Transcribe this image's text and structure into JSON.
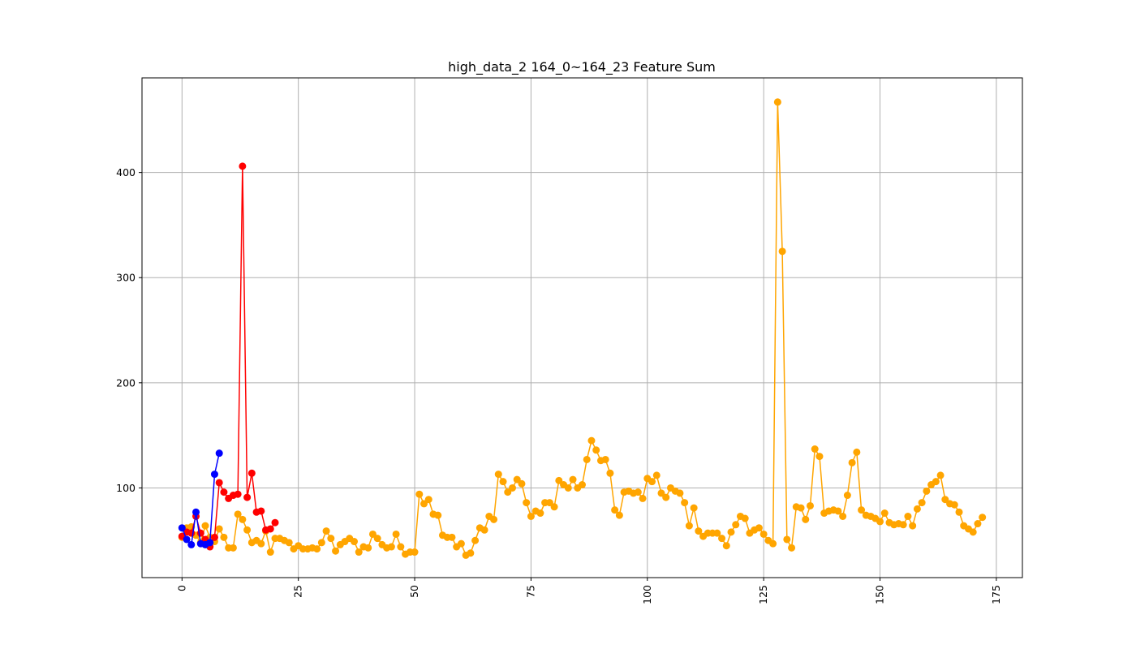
{
  "chart_data": {
    "type": "line",
    "title": "high_data_2 164_0~164_23 Feature Sum",
    "xlabel": "",
    "ylabel": "",
    "xlim": [
      -8.6,
      180.6
    ],
    "ylim": [
      14.7,
      490
    ],
    "grid": true,
    "legend": "none",
    "x_ticks": [
      0,
      25,
      50,
      75,
      100,
      125,
      150,
      175
    ],
    "x_tick_labels": [
      "0",
      "25",
      "50",
      "75",
      "100",
      "125",
      "150",
      "175"
    ],
    "x_tick_rotation": -90,
    "y_ticks": [
      100,
      200,
      300,
      400
    ],
    "y_tick_labels": [
      "100",
      "200",
      "300",
      "400"
    ],
    "series": [
      {
        "color": "#ffa500",
        "marker": "circle",
        "x_start": 0,
        "values": [
          53,
          62,
          63,
          55,
          48,
          64,
          53,
          49,
          61,
          53,
          43,
          43,
          75,
          70,
          60,
          48,
          50,
          47,
          59,
          39,
          52,
          52,
          50,
          48,
          42,
          45,
          42,
          42,
          43,
          42,
          48,
          59,
          52,
          40,
          46,
          49,
          52,
          49,
          39,
          44,
          43,
          56,
          52,
          46,
          43,
          44,
          56,
          44,
          37,
          39,
          39,
          94,
          85,
          89,
          75,
          74,
          55,
          53,
          53,
          44,
          47,
          36,
          38,
          50,
          62,
          60,
          73,
          70,
          113,
          106,
          96,
          100,
          108,
          104,
          86,
          73,
          78,
          76,
          86,
          86,
          82,
          107,
          103,
          100,
          108,
          100,
          103,
          127,
          145,
          136,
          126,
          127,
          114,
          79,
          74,
          96,
          97,
          95,
          96,
          90,
          109,
          106,
          112,
          95,
          91,
          100,
          97,
          95,
          86,
          64,
          81,
          59,
          54,
          57,
          57,
          57,
          52,
          45,
          58,
          65,
          73,
          71,
          57,
          60,
          62,
          56,
          50,
          47,
          467,
          325,
          51,
          43,
          82,
          81,
          70,
          83,
          137,
          130,
          76,
          78,
          79,
          78,
          73,
          93,
          124,
          134,
          79,
          74,
          73,
          71,
          68,
          76,
          67,
          65,
          66,
          65,
          73,
          64,
          80,
          86,
          97,
          103,
          106,
          112,
          89,
          85,
          84,
          77,
          64,
          61,
          58,
          66,
          72
        ]
      },
      {
        "color": "#ff0000",
        "marker": "circle",
        "x_start": 0,
        "values": [
          54,
          58,
          57,
          73,
          57,
          51,
          44,
          53,
          105,
          96,
          90,
          93,
          94,
          406,
          91,
          114,
          77,
          78,
          60,
          61,
          67
        ]
      },
      {
        "color": "#0000ff",
        "marker": "circle",
        "x_start": 0,
        "values": [
          62,
          51,
          46,
          77,
          47,
          46,
          48,
          113,
          133
        ]
      }
    ]
  }
}
